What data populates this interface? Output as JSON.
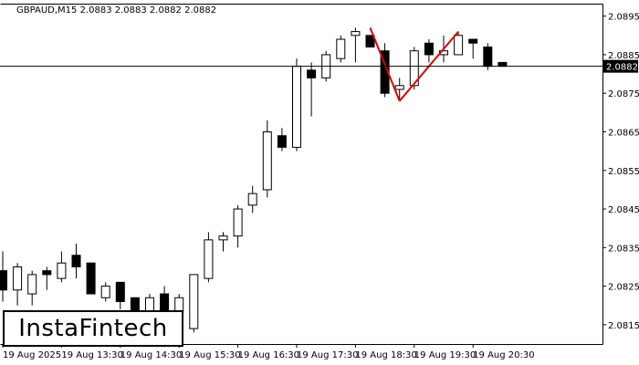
{
  "header": {
    "symbol_line": "GBPAUD,M15  2.0883 2.0883 2.0882 2.0882"
  },
  "logo": {
    "text": "InstaFintech"
  },
  "colors": {
    "background": "#ffffff",
    "candle_up_fill": "#ffffff",
    "candle_down_fill": "#000000",
    "candle_outline": "#000000",
    "price_line": "#000000",
    "price_tag_bg": "#000000",
    "price_tag_text": "#ffffff",
    "pattern_line": "#e00000"
  },
  "chart_data": {
    "type": "candlestick",
    "title": "GBPAUD,M15",
    "current_price": 2.0882,
    "current_price_label": "2.0882",
    "ylim": [
      2.081,
      2.0898
    ],
    "y_ticks": [
      2.0895,
      2.0885,
      2.0875,
      2.0865,
      2.0855,
      2.0845,
      2.0835,
      2.0825,
      2.0815
    ],
    "y_tick_labels": [
      "2.0895",
      "2.0885",
      "2.0875",
      "2.0865",
      "2.0855",
      "2.0845",
      "2.0835",
      "2.0825",
      "2.0815"
    ],
    "x_tick_labels": [
      "19 Aug 2025",
      "19 Aug 13:30",
      "19 Aug 14:30",
      "19 Aug 15:30",
      "19 Aug 16:30",
      "19 Aug 17:30",
      "19 Aug 18:30",
      "19 Aug 19:30",
      "19 Aug 20:30"
    ],
    "x_tick_candle_index": [
      0,
      4,
      8,
      12,
      16,
      20,
      24,
      28,
      32
    ],
    "candles": [
      {
        "o": 2.0829,
        "h": 2.0834,
        "l": 2.0821,
        "c": 2.0824
      },
      {
        "o": 2.0824,
        "h": 2.0831,
        "l": 2.082,
        "c": 2.083
      },
      {
        "o": 2.0823,
        "h": 2.0829,
        "l": 2.082,
        "c": 2.0828
      },
      {
        "o": 2.0829,
        "h": 2.083,
        "l": 2.0824,
        "c": 2.0828
      },
      {
        "o": 2.0827,
        "h": 2.0834,
        "l": 2.0826,
        "c": 2.0831
      },
      {
        "o": 2.0833,
        "h": 2.0836,
        "l": 2.0827,
        "c": 2.083
      },
      {
        "o": 2.0831,
        "h": 2.0831,
        "l": 2.0823,
        "c": 2.0823
      },
      {
        "o": 2.0822,
        "h": 2.0826,
        "l": 2.0821,
        "c": 2.0825
      },
      {
        "o": 2.0826,
        "h": 2.0826,
        "l": 2.0819,
        "c": 2.0821
      },
      {
        "o": 2.0822,
        "h": 2.0822,
        "l": 2.0816,
        "c": 2.0818
      },
      {
        "o": 2.0818,
        "h": 2.0823,
        "l": 2.0817,
        "c": 2.0822
      },
      {
        "o": 2.0823,
        "h": 2.0825,
        "l": 2.0817,
        "c": 2.0818
      },
      {
        "o": 2.0818,
        "h": 2.0823,
        "l": 2.0817,
        "c": 2.0822
      },
      {
        "o": 2.0814,
        "h": 2.0828,
        "l": 2.0813,
        "c": 2.0828
      },
      {
        "o": 2.0827,
        "h": 2.0839,
        "l": 2.0826,
        "c": 2.0837
      },
      {
        "o": 2.0837,
        "h": 2.0839,
        "l": 2.0834,
        "c": 2.0838
      },
      {
        "o": 2.0838,
        "h": 2.0846,
        "l": 2.0835,
        "c": 2.0845
      },
      {
        "o": 2.0846,
        "h": 2.0851,
        "l": 2.0844,
        "c": 2.0849
      },
      {
        "o": 2.085,
        "h": 2.0868,
        "l": 2.0848,
        "c": 2.0865
      },
      {
        "o": 2.0864,
        "h": 2.0866,
        "l": 2.086,
        "c": 2.0861
      },
      {
        "o": 2.0861,
        "h": 2.0884,
        "l": 2.086,
        "c": 2.0882
      },
      {
        "o": 2.0881,
        "h": 2.0883,
        "l": 2.0869,
        "c": 2.0879
      },
      {
        "o": 2.0879,
        "h": 2.0886,
        "l": 2.0878,
        "c": 2.0885
      },
      {
        "o": 2.0884,
        "h": 2.089,
        "l": 2.0883,
        "c": 2.0889
      },
      {
        "o": 2.089,
        "h": 2.0892,
        "l": 2.0883,
        "c": 2.0891
      },
      {
        "o": 2.089,
        "h": 2.089,
        "l": 2.0887,
        "c": 2.0887
      },
      {
        "o": 2.0886,
        "h": 2.0888,
        "l": 2.0874,
        "c": 2.0875
      },
      {
        "o": 2.0876,
        "h": 2.0879,
        "l": 2.0873,
        "c": 2.0877
      },
      {
        "o": 2.0877,
        "h": 2.0887,
        "l": 2.0876,
        "c": 2.0886
      },
      {
        "o": 2.0888,
        "h": 2.0889,
        "l": 2.0883,
        "c": 2.0885
      },
      {
        "o": 2.0885,
        "h": 2.089,
        "l": 2.0883,
        "c": 2.0886
      },
      {
        "o": 2.0885,
        "h": 2.0891,
        "l": 2.0885,
        "c": 2.089
      },
      {
        "o": 2.0889,
        "h": 2.0889,
        "l": 2.0884,
        "c": 2.0888
      },
      {
        "o": 2.0887,
        "h": 2.0888,
        "l": 2.0881,
        "c": 2.0882
      },
      {
        "o": 2.0883,
        "h": 2.0883,
        "l": 2.0882,
        "c": 2.0882
      }
    ],
    "pattern_lines": [
      {
        "from": {
          "candle": 25,
          "price": 2.0892
        },
        "to": {
          "candle": 27,
          "price": 2.0873
        }
      },
      {
        "from": {
          "candle": 27,
          "price": 2.0873
        },
        "to": {
          "candle": 31,
          "price": 2.0891
        }
      }
    ]
  }
}
